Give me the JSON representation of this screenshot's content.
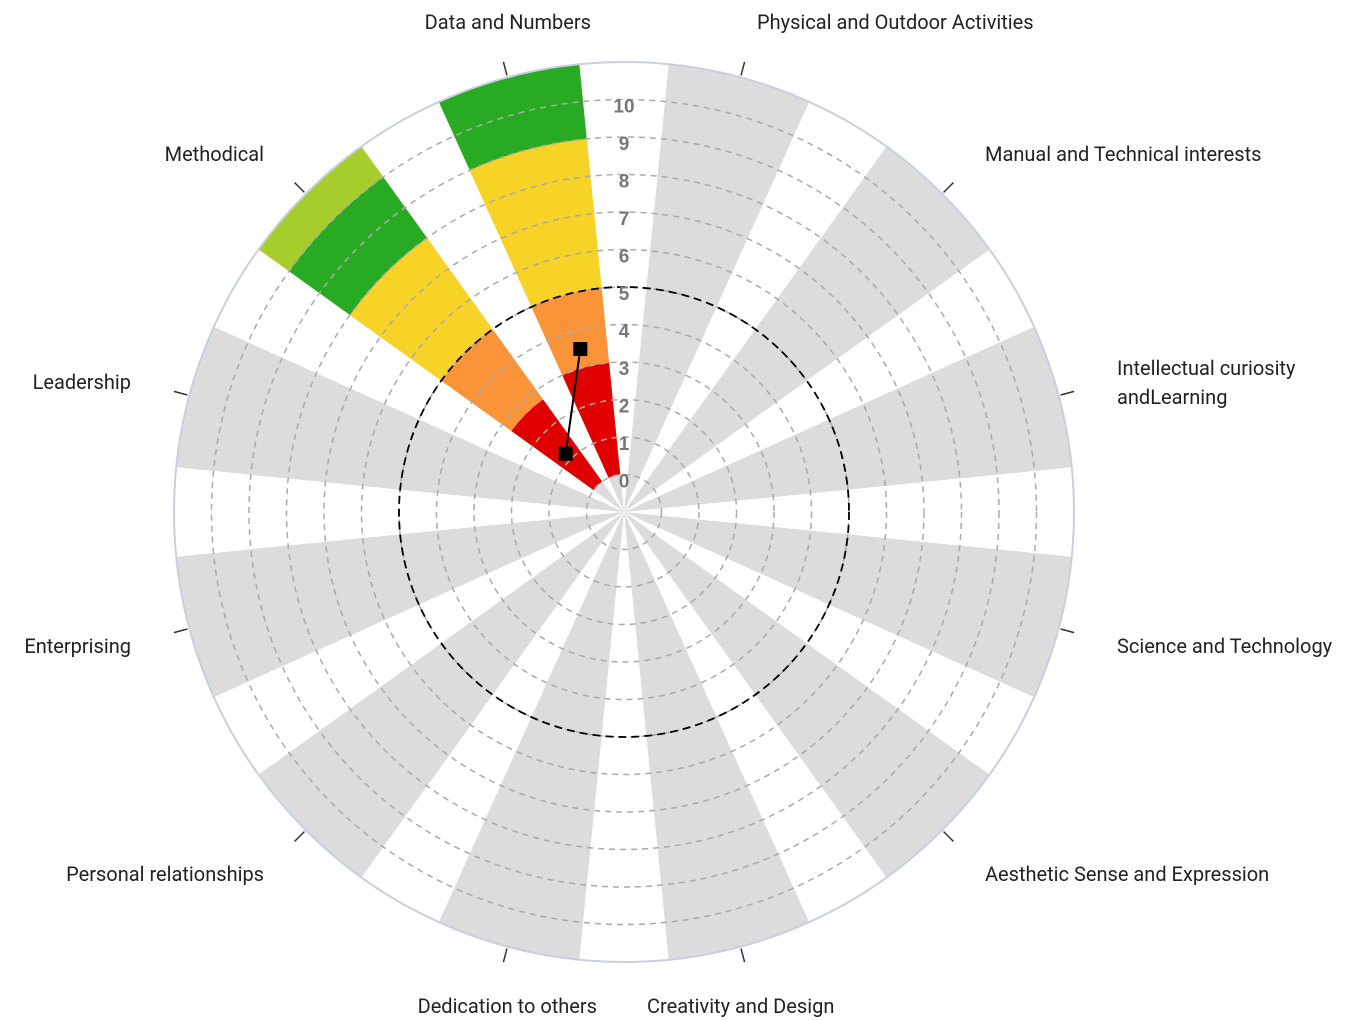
{
  "chart_data": {
    "type": "polar-bar",
    "categories": [
      "Physical and Outdoor Activities",
      "Manual and Technical interests",
      "Intellectual curiosity andLearning",
      "Science and Technology",
      "Aesthetic Sense and Expression",
      "Creativity and Design",
      "Dedication to others",
      "Personal relationships",
      "Enterprising",
      "Leadership",
      "Methodical",
      "Data and Numbers"
    ],
    "series": [
      {
        "color": "#e00000",
        "values": [
          null,
          null,
          null,
          null,
          null,
          null,
          null,
          null,
          null,
          null,
          2.7,
          3
        ]
      },
      {
        "color": "#fb9339",
        "values": [
          null,
          null,
          null,
          null,
          null,
          null,
          null,
          null,
          null,
          null,
          2.3,
          2
        ]
      },
      {
        "color": "#f8d327",
        "values": [
          null,
          null,
          null,
          null,
          null,
          null,
          null,
          null,
          null,
          null,
          3,
          4
        ]
      },
      {
        "color": "#28aa22",
        "values": [
          null,
          null,
          null,
          null,
          null,
          null,
          null,
          null,
          null,
          null,
          2,
          2
        ]
      },
      {
        "color": "#a6cd2b",
        "values": [
          null,
          null,
          null,
          null,
          null,
          null,
          null,
          null,
          null,
          null,
          1,
          null
        ]
      }
    ],
    "markers": {
      "color": "#000000",
      "values": [
        null,
        null,
        null,
        null,
        null,
        null,
        null,
        null,
        null,
        null,
        1.2,
        3.5
      ]
    },
    "ylim": [
      -1,
      11
    ],
    "yticks": [
      0,
      1,
      2,
      3,
      4,
      5,
      6,
      7,
      8,
      9,
      10
    ],
    "reference_line": 5,
    "grid": true,
    "wedge_color": "#dcdcdc"
  }
}
